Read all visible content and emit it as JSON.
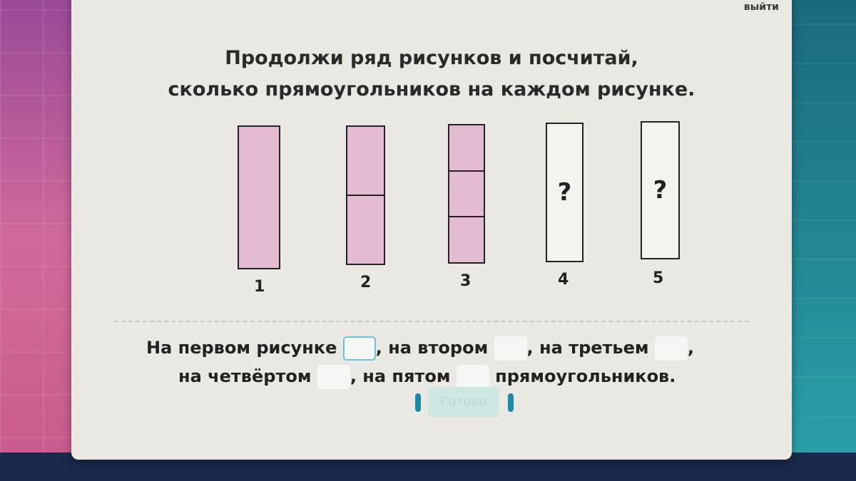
{
  "header": {
    "exit_label": "выйти"
  },
  "task": {
    "title_line1": "Продолжи ряд рисунков и посчитай,",
    "title_line2": "сколько прямоугольников на каждом рисунке."
  },
  "figures": [
    {
      "label": "1",
      "segments": 1,
      "unknown": false
    },
    {
      "label": "2",
      "segments": 2,
      "unknown": false
    },
    {
      "label": "3",
      "segments": 3,
      "unknown": false
    },
    {
      "label": "4",
      "unknown": true,
      "mark": "?"
    },
    {
      "label": "5",
      "unknown": true,
      "mark": "?"
    }
  ],
  "answer": {
    "part1": "На первом рисунке",
    "part2": ", на втором",
    "part3": ", на третьем",
    "part4": ",",
    "part5": "на четвёртом",
    "part6": ", на пятом",
    "part7": "прямоугольников.",
    "values": [
      "",
      "",
      "",
      "",
      ""
    ]
  },
  "submit_label": "Готово",
  "colors": {
    "figure_fill": "#e3bcd2",
    "input_border": "#6cc0d8",
    "button": "#cfe7e3"
  }
}
